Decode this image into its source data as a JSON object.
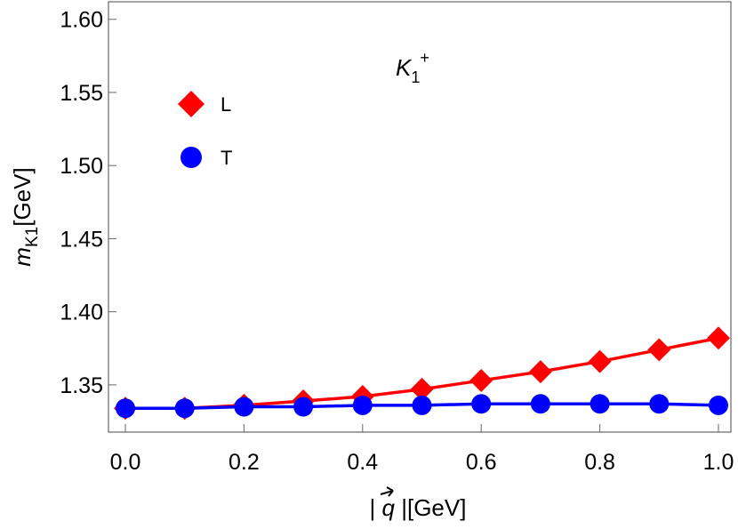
{
  "chart_data": {
    "type": "line",
    "annotation": {
      "base": "K",
      "sub": "1",
      "sup": "+"
    },
    "xlabel": {
      "left": "| ",
      "var": "q",
      "right": " |[GeV]"
    },
    "ylabel": {
      "base": "m",
      "sub": "K1",
      "unit": "[GeV]"
    },
    "x": [
      0.0,
      0.1,
      0.2,
      0.3,
      0.4,
      0.5,
      0.6,
      0.7,
      0.8,
      0.9,
      1.0
    ],
    "series": [
      {
        "name": "L",
        "color": "#ff0000",
        "marker": "diamond",
        "values": [
          1.334,
          1.334,
          1.336,
          1.339,
          1.342,
          1.347,
          1.353,
          1.359,
          1.366,
          1.374,
          1.382
        ]
      },
      {
        "name": "T",
        "color": "#0000ff",
        "marker": "circle",
        "values": [
          1.334,
          1.334,
          1.335,
          1.335,
          1.336,
          1.336,
          1.337,
          1.337,
          1.337,
          1.337,
          1.336
        ]
      }
    ],
    "xlim": [
      -0.0285,
      1.021
    ],
    "ylim": [
      1.3177,
      1.612
    ],
    "xticks": [
      {
        "value": 0,
        "label": "0.0"
      },
      {
        "value": 0.2,
        "label": "0.2"
      },
      {
        "value": 0.4,
        "label": "0.4"
      },
      {
        "value": 0.6,
        "label": "0.6"
      },
      {
        "value": 0.8,
        "label": "0.8"
      },
      {
        "value": 1,
        "label": "1.0"
      }
    ],
    "yticks": [
      {
        "value": 1.35,
        "label": "1.35"
      },
      {
        "value": 1.4,
        "label": "1.40"
      },
      {
        "value": 1.45,
        "label": "1.45"
      },
      {
        "value": 1.5,
        "label": "1.50"
      },
      {
        "value": 1.55,
        "label": "1.55"
      },
      {
        "value": 1.6,
        "label": "1.60"
      }
    ]
  }
}
